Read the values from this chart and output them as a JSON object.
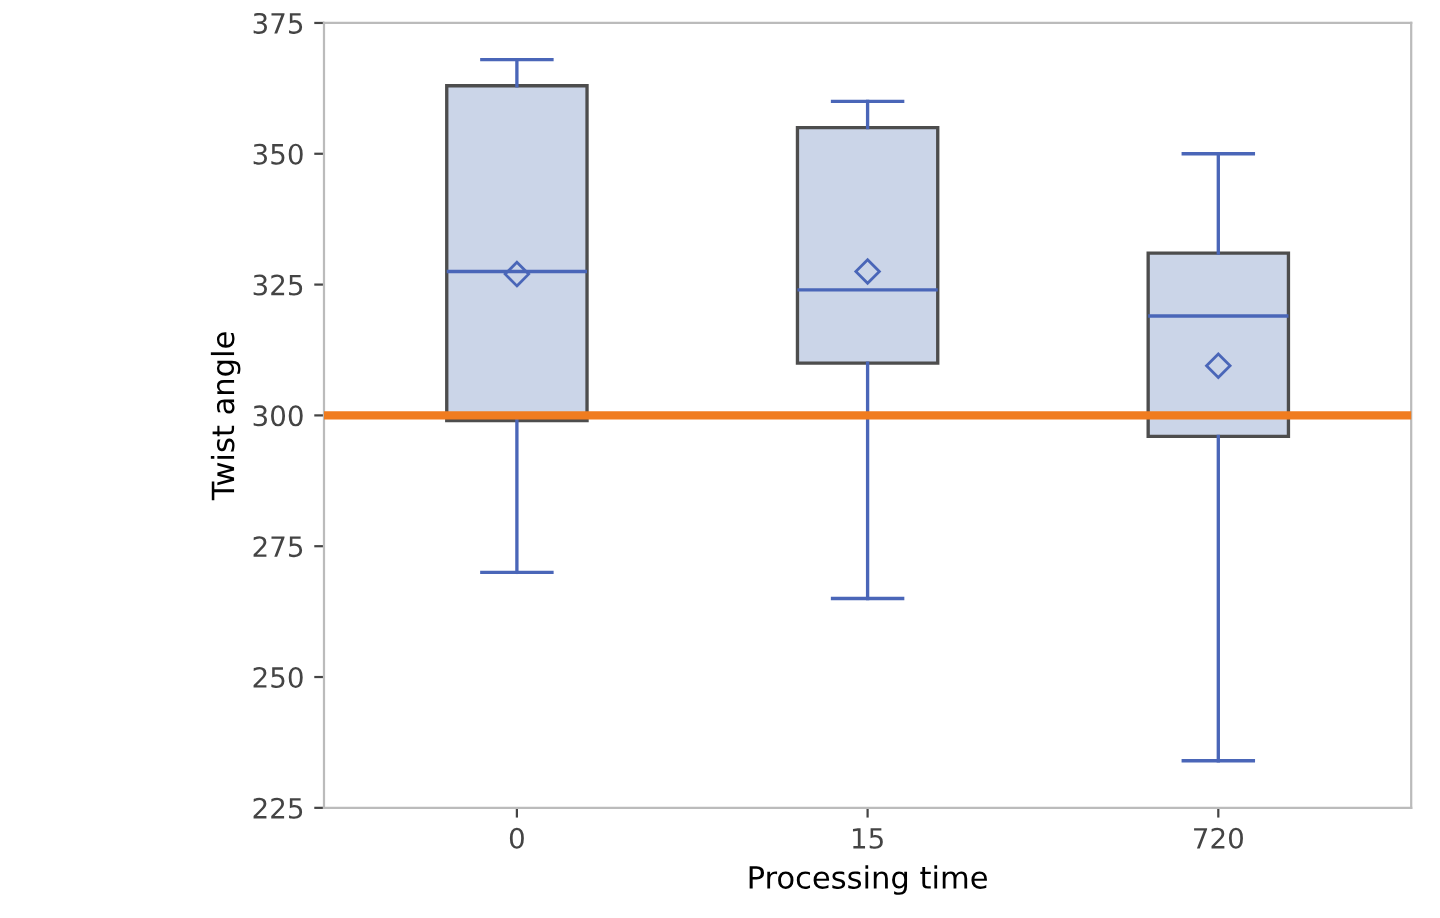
{
  "chart_data": {
    "type": "box",
    "xlabel": "Processing time",
    "ylabel": "Twist angle",
    "categories": [
      "0",
      "15",
      "720"
    ],
    "boxes": [
      {
        "low": 270,
        "q1": 299,
        "median": 327.5,
        "q3": 363,
        "high": 368,
        "mean": 327
      },
      {
        "low": 265,
        "q1": 310,
        "median": 324,
        "q3": 355,
        "high": 360,
        "mean": 327.5
      },
      {
        "low": 234,
        "q1": 296,
        "median": 319,
        "q3": 331,
        "high": 350,
        "mean": 309.5
      }
    ],
    "color": "#cbd5e8",
    "ylim": [
      225,
      375
    ],
    "yticks": [
      225,
      250,
      275,
      300,
      325,
      350,
      375
    ],
    "ref_lines": [
      {
        "axis": "y",
        "value": 300,
        "color": "#f07c1f"
      }
    ],
    "grid": false,
    "legend": false
  }
}
